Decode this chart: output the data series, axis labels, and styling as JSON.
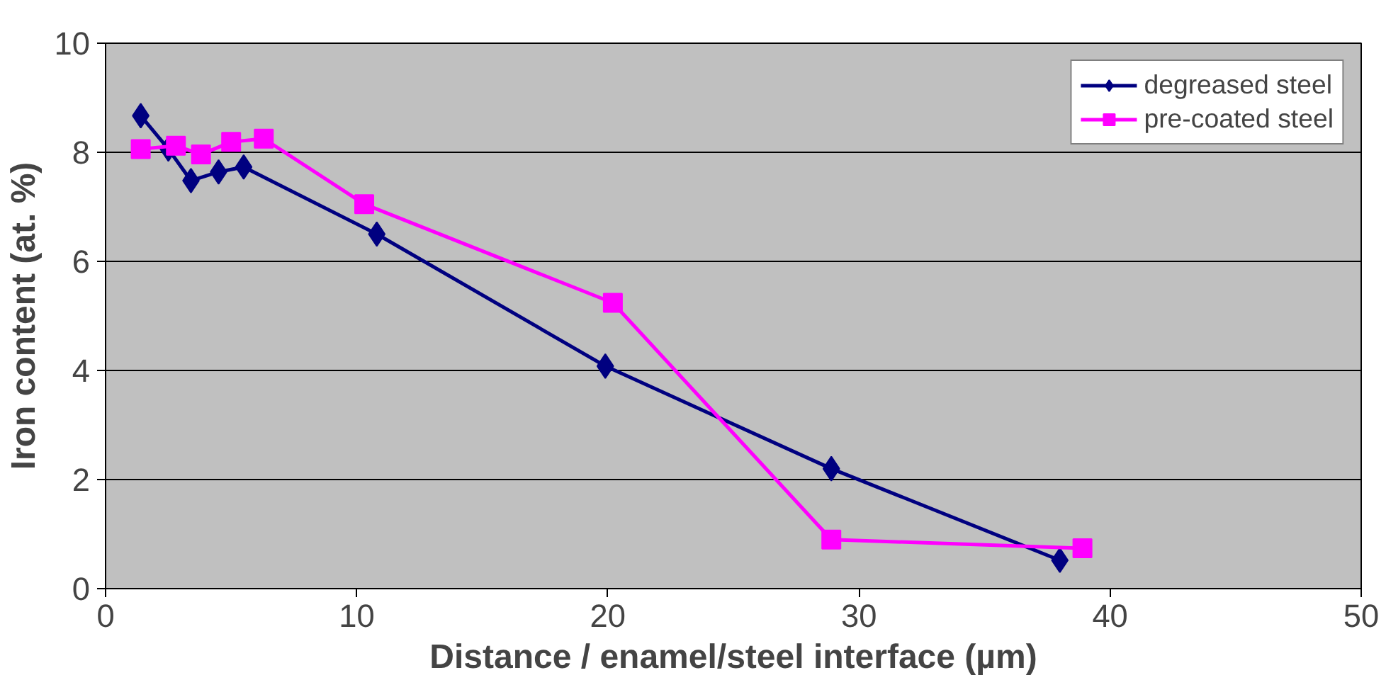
{
  "chart_data": {
    "type": "line",
    "xlabel": "Distance / enamel/steel interface (µm)",
    "ylabel": "Iron content (at. %)",
    "xlim": [
      0,
      50
    ],
    "xticks": [
      0,
      10,
      20,
      30,
      40,
      50
    ],
    "ylim": [
      0,
      10
    ],
    "yticks": [
      0,
      2,
      4,
      6,
      8,
      10
    ],
    "grid": "y",
    "legend": "top right",
    "line_style": "solid",
    "series": [
      {
        "name": "degreased steel",
        "color": "#000080",
        "marker": "diamond",
        "x": [
          1.4,
          2.5,
          3.4,
          4.5,
          5.5,
          10.8,
          19.9,
          28.9,
          38.0
        ],
        "values": [
          8.67,
          8.06,
          7.48,
          7.64,
          7.73,
          6.5,
          4.08,
          2.2,
          0.52
        ]
      },
      {
        "name": "pre-coated steel",
        "color": "#ff00ff",
        "marker": "square",
        "x": [
          1.4,
          2.8,
          3.8,
          5.0,
          6.3,
          10.3,
          20.2,
          28.9,
          38.9
        ],
        "values": [
          8.06,
          8.12,
          7.96,
          8.19,
          8.25,
          7.05,
          5.24,
          0.9,
          0.74
        ]
      }
    ]
  }
}
